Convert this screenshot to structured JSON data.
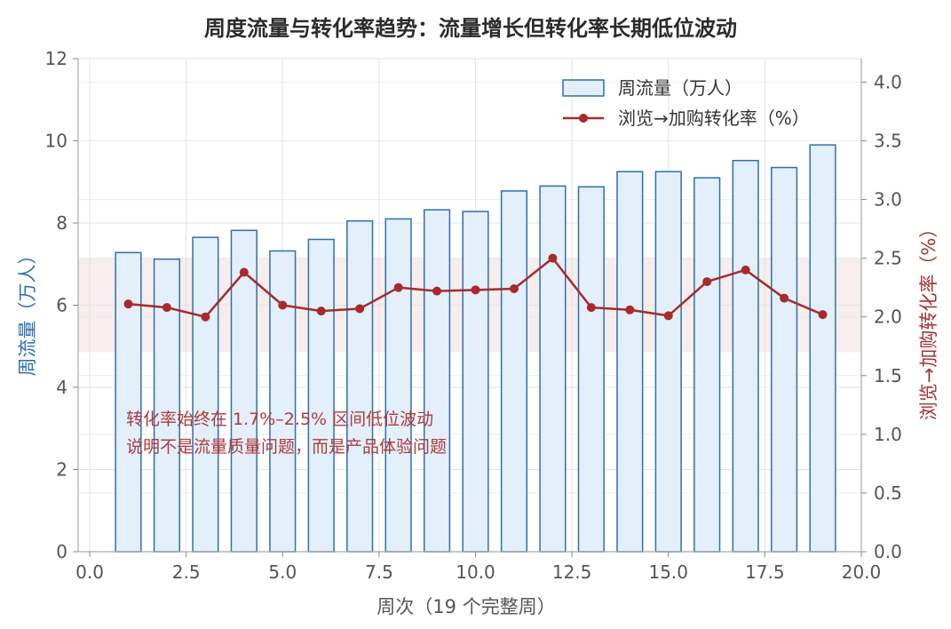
{
  "chart_data": {
    "type": "bar+line",
    "title": "周度流量与转化率趋势：流量增长但转化率长期低位波动",
    "xlabel": "周次（19 个完整周）",
    "ylabel_left": "周流量（万人）",
    "ylabel_right": "浏览→加购转化率（%）",
    "xlim": [
      -0.3,
      20.0
    ],
    "ylim_left": [
      0,
      12
    ],
    "ylim_right": [
      0,
      4.2
    ],
    "x_ticks": [
      "0.0",
      "2.5",
      "5.0",
      "7.5",
      "10.0",
      "12.5",
      "15.0",
      "17.5",
      "20.0"
    ],
    "y_left_ticks": [
      "0",
      "2",
      "4",
      "6",
      "8",
      "10",
      "12"
    ],
    "y_right_ticks": [
      "0.0",
      "0.5",
      "1.0",
      "1.5",
      "2.0",
      "2.5",
      "3.0",
      "3.5",
      "4.0"
    ],
    "grid": true,
    "legend_position": "top-right",
    "band": {
      "axis": "right",
      "from": 1.7,
      "to": 2.5
    },
    "series": [
      {
        "name": "周流量（万人）",
        "type": "bar",
        "axis": "left",
        "color": "#2f6fb0",
        "fill": "#e3effa",
        "x": [
          1,
          2,
          3,
          4,
          5,
          6,
          7,
          8,
          9,
          10,
          11,
          12,
          13,
          14,
          15,
          16,
          17,
          18,
          19
        ],
        "values": [
          7.28,
          7.12,
          7.65,
          7.82,
          7.32,
          7.6,
          8.05,
          8.1,
          8.32,
          8.28,
          8.78,
          8.9,
          8.88,
          9.25,
          9.25,
          9.1,
          9.52,
          9.35,
          9.9
        ]
      },
      {
        "name": "浏览→加购转化率（%）",
        "type": "line",
        "axis": "right",
        "color": "#a82a2a",
        "x": [
          1,
          2,
          3,
          4,
          5,
          6,
          7,
          8,
          9,
          10,
          11,
          12,
          13,
          14,
          15,
          16,
          17,
          18,
          19
        ],
        "values": [
          2.11,
          2.08,
          2.0,
          2.38,
          2.1,
          2.05,
          2.07,
          2.25,
          2.22,
          2.23,
          2.24,
          2.5,
          2.08,
          2.06,
          2.01,
          2.3,
          2.4,
          2.16,
          2.02
        ]
      }
    ],
    "annotation": {
      "line1": "转化率始终在 1.7%–2.5% 区间低位波动",
      "line2": "说明不是流量质量问题，而是产品体验问题"
    }
  }
}
